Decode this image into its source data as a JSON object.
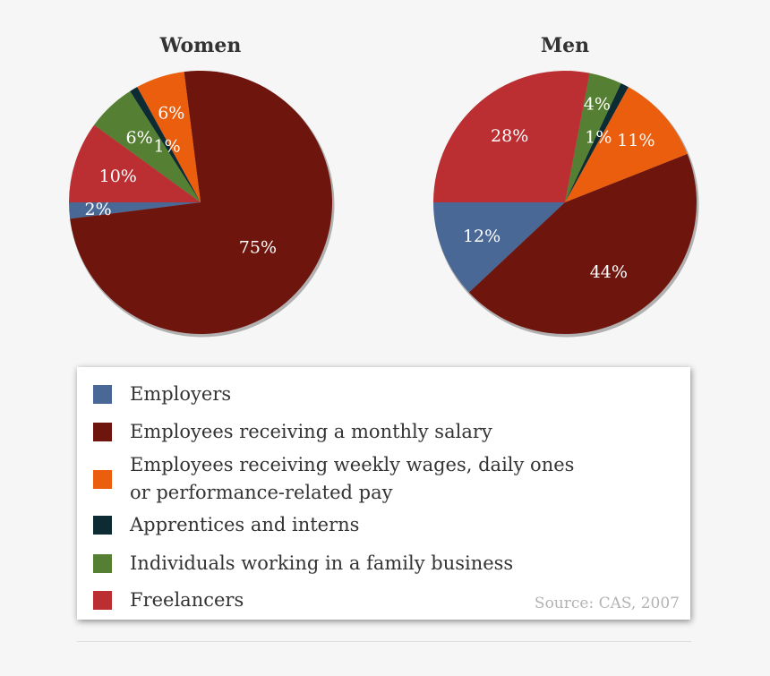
{
  "chart_data": [
    {
      "type": "pie",
      "title": "Women",
      "slices": [
        {
          "category": "Employers",
          "value": 2,
          "label": "2%"
        },
        {
          "category": "Employees receiving a monthly salary",
          "value": 75,
          "label": "75%"
        },
        {
          "category": "Employees receiving weekly wages, daily ones or performance-related pay",
          "value": 6,
          "label": "6%"
        },
        {
          "category": "Apprentices and interns",
          "value": 1,
          "label": "1%"
        },
        {
          "category": "Individuals working in a family business",
          "value": 6,
          "label": "6%"
        },
        {
          "category": "Freelancers",
          "value": 10,
          "label": "10%"
        }
      ]
    },
    {
      "type": "pie",
      "title": "Men",
      "slices": [
        {
          "category": "Employers",
          "value": 12,
          "label": "12%"
        },
        {
          "category": "Employees receiving a monthly salary",
          "value": 44,
          "label": "44%"
        },
        {
          "category": "Employees receiving weekly wages, daily ones or performance-related pay",
          "value": 11,
          "label": "11%"
        },
        {
          "category": "Apprentices and interns",
          "value": 1,
          "label": "1%"
        },
        {
          "category": "Individuals working in a family business",
          "value": 4,
          "label": "4%"
        },
        {
          "category": "Freelancers",
          "value": 28,
          "label": "28%"
        }
      ]
    }
  ],
  "legend": {
    "placement": "bottom",
    "items": [
      {
        "label": "Employers",
        "color": "#4a6896"
      },
      {
        "label": "Employees receiving a monthly salary",
        "color": "#6e150e"
      },
      {
        "label": "Employees receiving weekly wages, daily ones or performance-related pay",
        "color": "#ea5e0e"
      },
      {
        "label": "Apprentices and interns",
        "color": "#0c2b33"
      },
      {
        "label": "Individuals working in a family business",
        "color": "#557f32"
      },
      {
        "label": "Freelancers",
        "color": "#bb2f33"
      }
    ]
  },
  "source": "Source: CAS, 2007"
}
